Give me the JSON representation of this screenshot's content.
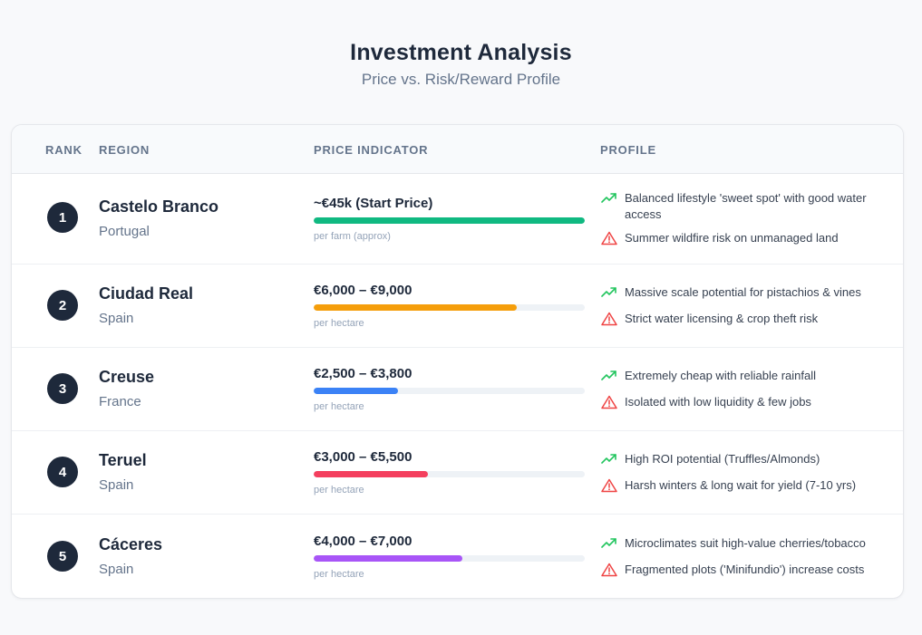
{
  "header": {
    "title": "Investment Analysis",
    "subtitle": "Price vs. Risk/Reward Profile"
  },
  "columns": {
    "rank": "RANK",
    "region": "REGION",
    "price": "PRICE INDICATOR",
    "profile": "PROFILE"
  },
  "colors": {
    "up_icon": "#22c55e",
    "warn_icon": "#ef4444",
    "badge": "#1e293b"
  },
  "rows": [
    {
      "rank": "1",
      "region": "Castelo Branco",
      "country": "Portugal",
      "price": "~€45k (Start Price)",
      "note": "per farm (approx)",
      "bar_fraction": 1.0,
      "bar_color": "#10b981",
      "pro": "Balanced lifestyle 'sweet spot' with good water access",
      "con": "Summer wildfire risk on unmanaged land"
    },
    {
      "rank": "2",
      "region": "Ciudad Real",
      "country": "Spain",
      "price": "€6,000 – €9,000",
      "note": "per hectare",
      "bar_fraction": 0.75,
      "bar_color": "#f59e0b",
      "pro": "Massive scale potential for pistachios & vines",
      "con": "Strict water licensing & crop theft risk"
    },
    {
      "rank": "3",
      "region": "Creuse",
      "country": "France",
      "price": "€2,500 – €3,800",
      "note": "per hectare",
      "bar_fraction": 0.31,
      "bar_color": "#3b82f6",
      "pro": "Extremely cheap with reliable rainfall",
      "con": "Isolated with low liquidity & few jobs"
    },
    {
      "rank": "4",
      "region": "Teruel",
      "country": "Spain",
      "price": "€3,000 – €5,500",
      "note": "per hectare",
      "bar_fraction": 0.42,
      "bar_color": "#f43f5e",
      "pro": "High ROI potential (Truffles/Almonds)",
      "con": "Harsh winters & long wait for yield (7-10 yrs)"
    },
    {
      "rank": "5",
      "region": "Cáceres",
      "country": "Spain",
      "price": "€4,000 – €7,000",
      "note": "per hectare",
      "bar_fraction": 0.55,
      "bar_color": "#a855f7",
      "pro": "Microclimates suit high-value cherries/tobacco",
      "con": "Fragmented plots ('Minifundio') increase costs"
    }
  ]
}
